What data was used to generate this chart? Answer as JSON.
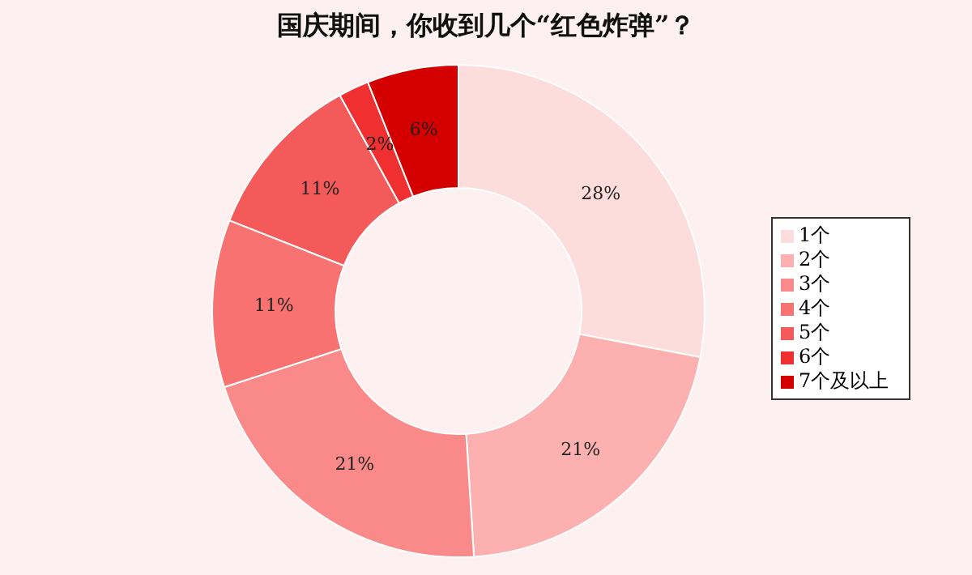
{
  "chart_data": {
    "type": "donut",
    "title": "国庆期间，你收到几个“红色炸弹”？",
    "categories": [
      "1个",
      "2个",
      "3个",
      "4个",
      "5个",
      "6个",
      "7个及以上"
    ],
    "values": [
      28,
      21,
      21,
      11,
      11,
      2,
      6
    ],
    "value_labels": [
      "28%",
      "21%",
      "21%",
      "11%",
      "11%",
      "2%",
      "6%"
    ],
    "colors": [
      "#fddcdc",
      "#fcb0b0",
      "#fa8a8a",
      "#f87272",
      "#f55a5a",
      "#f03030",
      "#d40000"
    ],
    "legend": "right"
  }
}
